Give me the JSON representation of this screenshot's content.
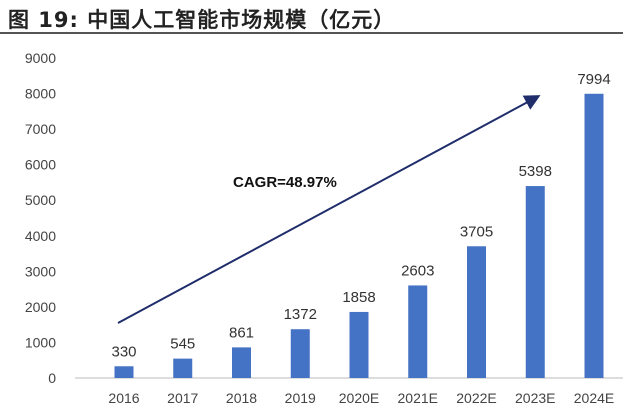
{
  "title": "图 19:  中国人工智能市场规模（亿元）",
  "chart_data": {
    "type": "bar",
    "title": "图 19:  中国人工智能市场规模（亿元）",
    "categories": [
      "2016",
      "2017",
      "2018",
      "2019",
      "2020E",
      "2021E",
      "2022E",
      "2023E",
      "2024E"
    ],
    "values": [
      330,
      545,
      861,
      1372,
      1858,
      2603,
      3705,
      5398,
      7994
    ],
    "data_labels": [
      "330",
      "545",
      "861",
      "1372",
      "1858",
      "2603",
      "3705",
      "5398",
      "7994"
    ],
    "ylim": [
      0,
      9000
    ],
    "yticks": [
      "0",
      "1000",
      "2000",
      "3000",
      "4000",
      "5000",
      "6000",
      "7000",
      "8000",
      "9000"
    ],
    "xlabel": "",
    "ylabel": "",
    "grid": false,
    "bar_color": "#4472C4",
    "annotation": {
      "text": "CAGR=48.97%",
      "arrow_color": "#1F2D6B"
    }
  }
}
